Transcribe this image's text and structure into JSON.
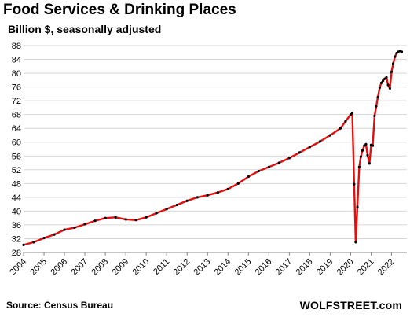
{
  "chart_data": {
    "type": "line",
    "title": "Food Services & Drinking Places",
    "subtitle": "Billion $, seasonally adjusted",
    "xlabel": "",
    "ylabel": "",
    "source": "Source: Census Bureau",
    "credit": "WOLFSTREET.com",
    "ylim": [
      28,
      88
    ],
    "yticks": [
      28,
      32,
      36,
      40,
      44,
      48,
      52,
      56,
      60,
      64,
      68,
      72,
      76,
      80,
      84,
      88
    ],
    "xlim": [
      2004.0,
      2022.75
    ],
    "xticks": [
      "2004",
      "2005",
      "2006",
      "2007",
      "2008",
      "2009",
      "2010",
      "2011",
      "2012",
      "2013",
      "2014",
      "2015",
      "2016",
      "2017",
      "2018",
      "2019",
      "2020",
      "2021",
      "2022"
    ],
    "grid": true,
    "line_color": "#e01010",
    "marker_color": "#000000",
    "series": [
      {
        "x": [
          2004.0,
          2004.5,
          2005.0,
          2005.5,
          2006.0,
          2006.5,
          2007.0,
          2007.5,
          2008.0,
          2008.5,
          2009.0,
          2009.5,
          2010.0,
          2010.5,
          2011.0,
          2011.5,
          2012.0,
          2012.5,
          2013.0,
          2013.5,
          2014.0,
          2014.5,
          2015.0,
          2015.5,
          2016.0,
          2016.5,
          2017.0,
          2017.5,
          2018.0,
          2018.5,
          2019.0,
          2019.5,
          2019.75,
          2020.0,
          2020.08,
          2020.17,
          2020.25,
          2020.33,
          2020.42,
          2020.5,
          2020.58,
          2020.67,
          2020.75,
          2020.83,
          2020.92,
          2021.0,
          2021.08,
          2021.17,
          2021.25,
          2021.33,
          2021.42,
          2021.5,
          2021.58,
          2021.67,
          2021.75,
          2021.83,
          2021.92,
          2022.0,
          2022.08,
          2022.17,
          2022.25,
          2022.33,
          2022.42,
          2022.5
        ],
        "values": [
          30.2,
          31.0,
          32.2,
          33.2,
          34.6,
          35.2,
          36.2,
          37.2,
          38.0,
          38.2,
          37.6,
          37.4,
          38.2,
          39.4,
          40.6,
          41.8,
          43.0,
          44.0,
          44.6,
          45.4,
          46.4,
          48.0,
          50.0,
          51.6,
          52.8,
          54.0,
          55.4,
          57.0,
          58.6,
          60.2,
          62.0,
          64.0,
          66.0,
          68.0,
          68.4,
          47.8,
          31.0,
          41.2,
          52.8,
          55.8,
          57.6,
          59.0,
          59.4,
          56.2,
          53.8,
          59.2,
          59.0,
          67.6,
          70.4,
          73.0,
          75.8,
          77.2,
          77.8,
          78.4,
          78.8,
          76.6,
          75.6,
          80.4,
          82.8,
          84.8,
          85.8,
          86.2,
          86.4,
          86.2
        ]
      }
    ]
  }
}
